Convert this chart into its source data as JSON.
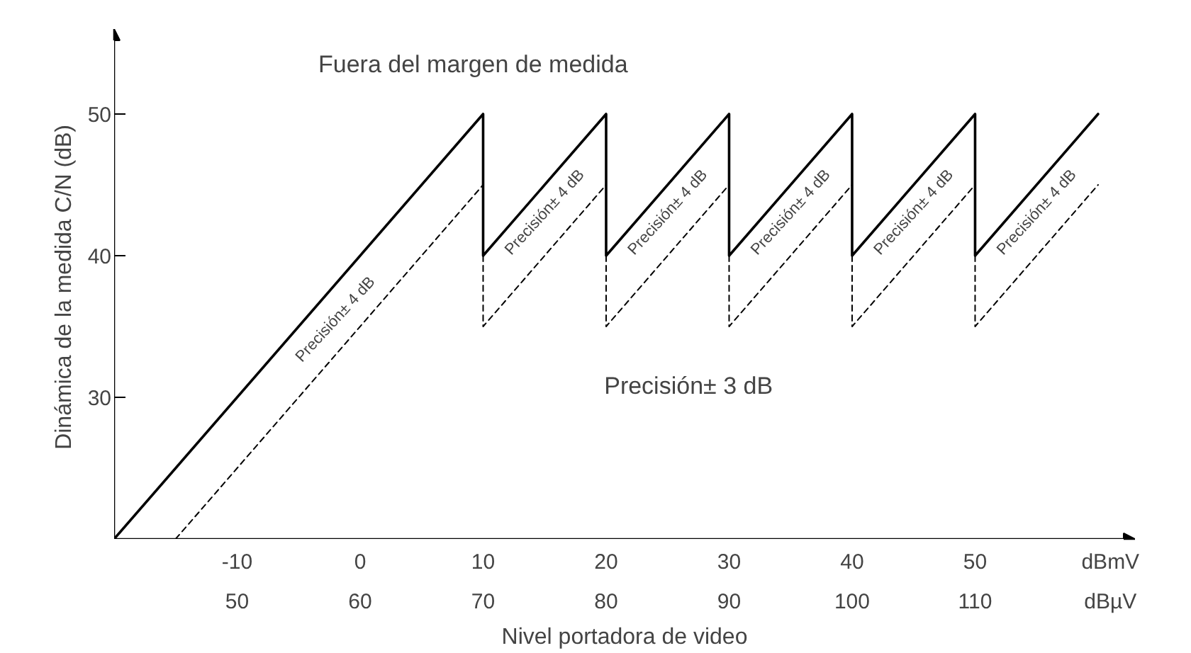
{
  "chart_data": {
    "type": "line",
    "xlabel": "Nivel portadora de video",
    "ylabel": "Dinámica de la medida C/N  (dB)",
    "xlim": [
      -20,
      63
    ],
    "ylim": [
      20,
      56
    ],
    "xticks": [
      -10,
      0,
      10,
      20,
      30,
      40,
      50,
      {
        "value": 61,
        "label": "dBmV"
      }
    ],
    "x2lim": [
      40,
      123
    ],
    "x2ticks": [
      50,
      60,
      70,
      80,
      90,
      100,
      110,
      {
        "value": 121,
        "label": "dBµV"
      }
    ],
    "yticks": [
      30,
      40,
      50
    ],
    "grid": false,
    "series": [
      {
        "color": "#000000",
        "line_style": "solid",
        "x": [
          -20,
          10,
          10,
          20,
          20,
          30,
          30,
          40,
          40,
          50,
          50,
          60
        ],
        "values": [
          20,
          50,
          40,
          50,
          40,
          50,
          40,
          50,
          40,
          50,
          40,
          50
        ]
      },
      {
        "color": "#000000",
        "line_style": "dashed",
        "x": [
          -15,
          10,
          null,
          10,
          10,
          20,
          null,
          20,
          20,
          30,
          null,
          30,
          30,
          40,
          null,
          40,
          40,
          50,
          null,
          50,
          50,
          60
        ],
        "values": [
          20,
          45,
          null,
          40,
          35,
          45,
          null,
          40,
          35,
          45,
          null,
          40,
          35,
          45,
          null,
          40,
          35,
          45,
          null,
          40,
          35,
          45
        ]
      }
    ],
    "annotations": [
      "Fuera del margen de medida",
      "Precisión± 3 dB",
      "Precisión± 4 dB",
      "Precisión± 4 dB",
      "Precisión± 4 dB",
      "Precisión± 4 dB",
      "Precisión± 4 dB",
      "Precisión± 4 dB"
    ]
  }
}
